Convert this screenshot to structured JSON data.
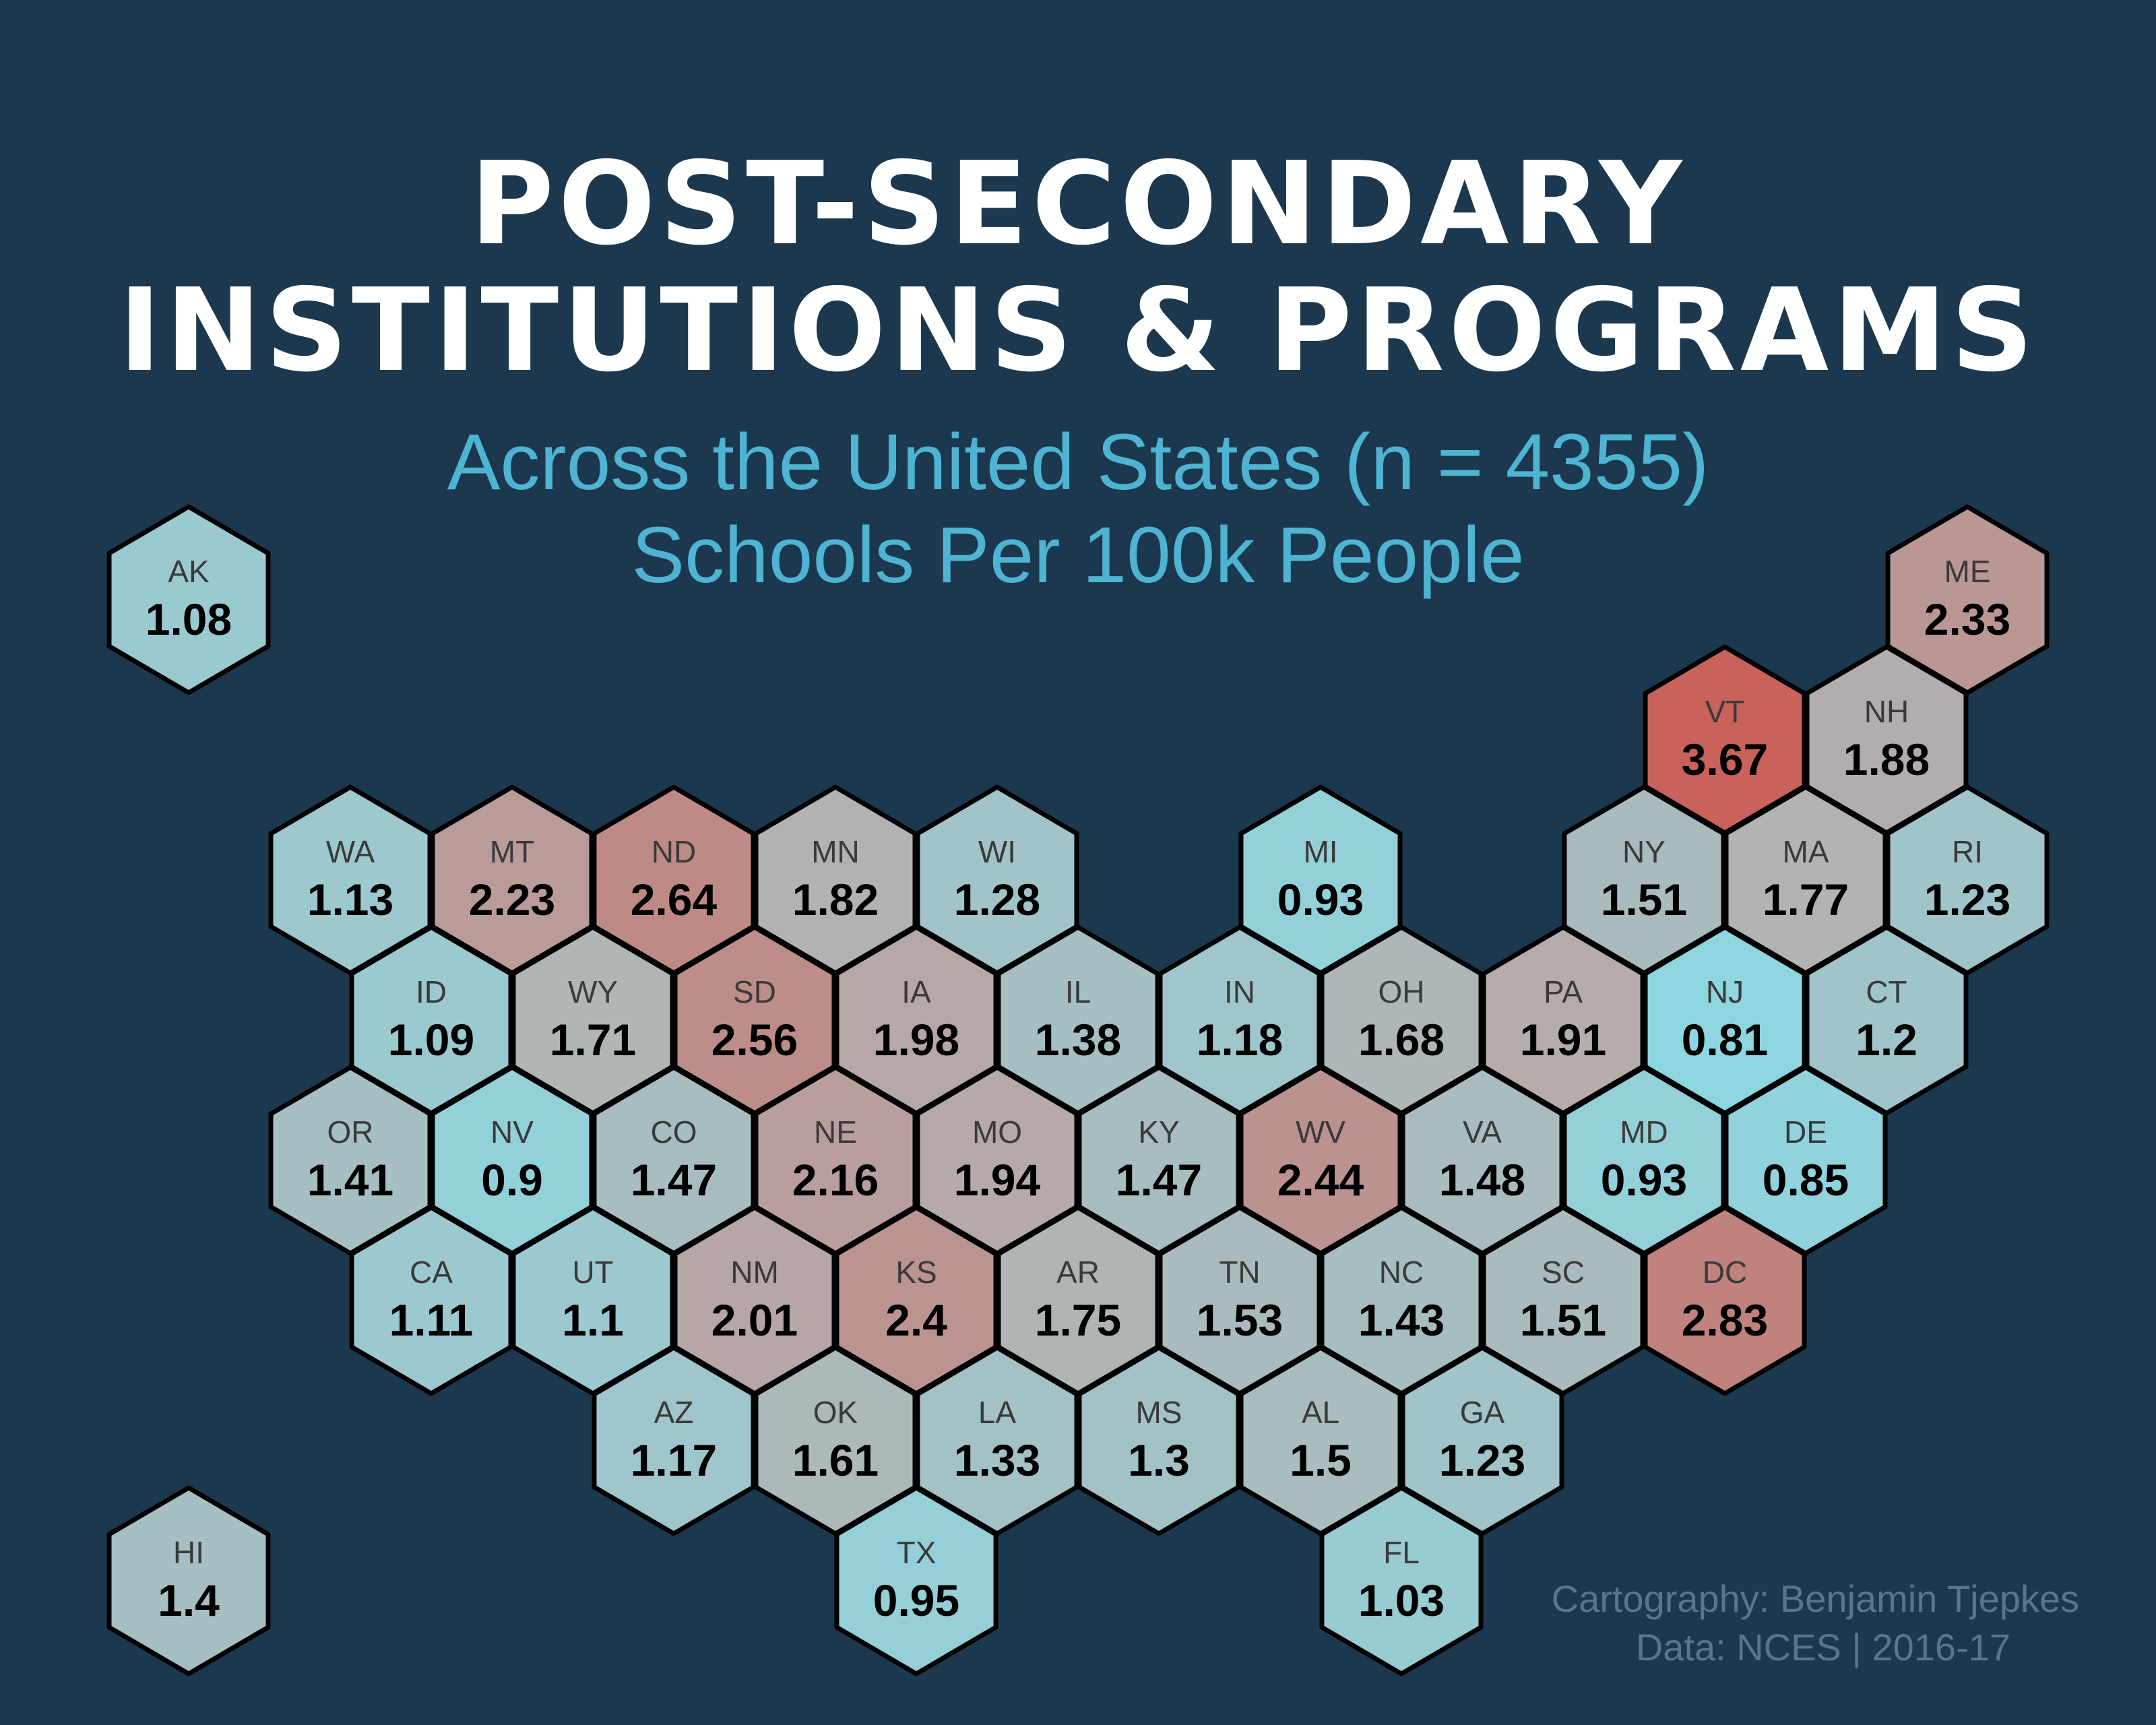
{
  "title_line1": "POST-SECONDARY",
  "title_line2": "INSTITUTIONS & PROGRAMS",
  "subtitle_line1": "Across the United States (n = 4355)",
  "subtitle_line2": "Schools Per 100k People",
  "credit_line1": "Cartography: Benjamin  Tjepkes",
  "credit_line2": "Data: NCES | 2016-17",
  "colors": {
    "background": "#1b384f",
    "low": "#8dd6e0",
    "mid": "#b3b3b3",
    "high": "#c8625a",
    "outline": "#000000"
  },
  "scale": {
    "min": 0.81,
    "mid": 1.8,
    "max": 3.67
  },
  "chart_data": {
    "type": "hexbin-map",
    "states": [
      {
        "abbr": "AK",
        "value": 1.08,
        "row": 0,
        "col": 0
      },
      {
        "abbr": "ME",
        "value": 2.33,
        "row": 0,
        "col": 11
      },
      {
        "abbr": "VT",
        "value": 3.67,
        "row": 1,
        "col": 9.5
      },
      {
        "abbr": "NH",
        "value": 1.88,
        "row": 1,
        "col": 10.5
      },
      {
        "abbr": "WA",
        "value": 1.13,
        "row": 2,
        "col": 1
      },
      {
        "abbr": "MT",
        "value": 2.23,
        "row": 2,
        "col": 2
      },
      {
        "abbr": "ND",
        "value": 2.64,
        "row": 2,
        "col": 3
      },
      {
        "abbr": "MN",
        "value": 1.82,
        "row": 2,
        "col": 4
      },
      {
        "abbr": "WI",
        "value": 1.28,
        "row": 2,
        "col": 5
      },
      {
        "abbr": "MI",
        "value": 0.93,
        "row": 2,
        "col": 7
      },
      {
        "abbr": "NY",
        "value": 1.51,
        "row": 2,
        "col": 9
      },
      {
        "abbr": "MA",
        "value": 1.77,
        "row": 2,
        "col": 10
      },
      {
        "abbr": "RI",
        "value": 1.23,
        "row": 2,
        "col": 11
      },
      {
        "abbr": "ID",
        "value": 1.09,
        "row": 3,
        "col": 1.5
      },
      {
        "abbr": "WY",
        "value": 1.71,
        "row": 3,
        "col": 2.5
      },
      {
        "abbr": "SD",
        "value": 2.56,
        "row": 3,
        "col": 3.5
      },
      {
        "abbr": "IA",
        "value": 1.98,
        "row": 3,
        "col": 4.5
      },
      {
        "abbr": "IL",
        "value": 1.38,
        "row": 3,
        "col": 5.5
      },
      {
        "abbr": "IN",
        "value": 1.18,
        "row": 3,
        "col": 6.5
      },
      {
        "abbr": "OH",
        "value": 1.68,
        "row": 3,
        "col": 7.5
      },
      {
        "abbr": "PA",
        "value": 1.91,
        "row": 3,
        "col": 8.5
      },
      {
        "abbr": "NJ",
        "value": 0.81,
        "row": 3,
        "col": 9.5
      },
      {
        "abbr": "CT",
        "value": 1.2,
        "row": 3,
        "col": 10.5
      },
      {
        "abbr": "OR",
        "value": 1.41,
        "row": 4,
        "col": 1
      },
      {
        "abbr": "NV",
        "value": 0.9,
        "row": 4,
        "col": 2
      },
      {
        "abbr": "CO",
        "value": 1.47,
        "row": 4,
        "col": 3
      },
      {
        "abbr": "NE",
        "value": 2.16,
        "row": 4,
        "col": 4
      },
      {
        "abbr": "MO",
        "value": 1.94,
        "row": 4,
        "col": 5
      },
      {
        "abbr": "KY",
        "value": 1.47,
        "row": 4,
        "col": 6
      },
      {
        "abbr": "WV",
        "value": 2.44,
        "row": 4,
        "col": 7
      },
      {
        "abbr": "VA",
        "value": 1.48,
        "row": 4,
        "col": 8
      },
      {
        "abbr": "MD",
        "value": 0.93,
        "row": 4,
        "col": 9
      },
      {
        "abbr": "DE",
        "value": 0.85,
        "row": 4,
        "col": 10
      },
      {
        "abbr": "CA",
        "value": 1.11,
        "row": 5,
        "col": 1.5
      },
      {
        "abbr": "UT",
        "value": 1.1,
        "row": 5,
        "col": 2.5
      },
      {
        "abbr": "NM",
        "value": 2.01,
        "row": 5,
        "col": 3.5
      },
      {
        "abbr": "KS",
        "value": 2.4,
        "row": 5,
        "col": 4.5
      },
      {
        "abbr": "AR",
        "value": 1.75,
        "row": 5,
        "col": 5.5
      },
      {
        "abbr": "TN",
        "value": 1.53,
        "row": 5,
        "col": 6.5
      },
      {
        "abbr": "NC",
        "value": 1.43,
        "row": 5,
        "col": 7.5
      },
      {
        "abbr": "SC",
        "value": 1.51,
        "row": 5,
        "col": 8.5
      },
      {
        "abbr": "DC",
        "value": 2.83,
        "row": 5,
        "col": 9.5
      },
      {
        "abbr": "AZ",
        "value": 1.17,
        "row": 6,
        "col": 3
      },
      {
        "abbr": "OK",
        "value": 1.61,
        "row": 6,
        "col": 4
      },
      {
        "abbr": "LA",
        "value": 1.33,
        "row": 6,
        "col": 5
      },
      {
        "abbr": "MS",
        "value": 1.3,
        "row": 6,
        "col": 6
      },
      {
        "abbr": "AL",
        "value": 1.5,
        "row": 6,
        "col": 7
      },
      {
        "abbr": "GA",
        "value": 1.23,
        "row": 6,
        "col": 8
      },
      {
        "abbr": "HI",
        "value": 1.4,
        "row": 7,
        "col": 0
      },
      {
        "abbr": "TX",
        "value": 0.95,
        "row": 7,
        "col": 4.5
      },
      {
        "abbr": "FL",
        "value": 1.03,
        "row": 7,
        "col": 7.5
      }
    ]
  }
}
